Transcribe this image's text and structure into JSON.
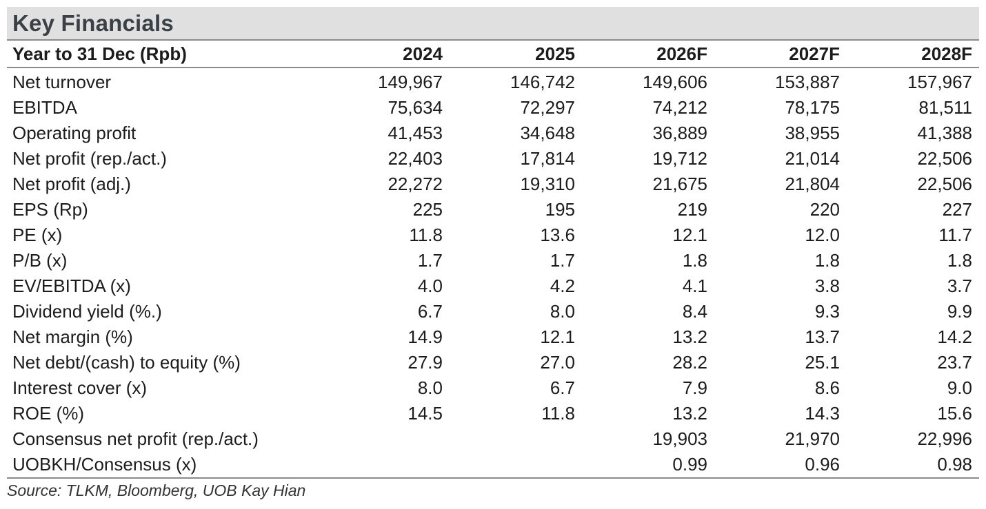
{
  "title": "Key Financials",
  "table": {
    "header_label": "Year to 31 Dec (Rpb)",
    "years": [
      "2024",
      "2025",
      "2026F",
      "2027F",
      "2028F"
    ],
    "rows": [
      {
        "label": "Net turnover",
        "values": [
          "149,967",
          "146,742",
          "149,606",
          "153,887",
          "157,967"
        ]
      },
      {
        "label": "EBITDA",
        "values": [
          "75,634",
          "72,297",
          "74,212",
          "78,175",
          "81,511"
        ]
      },
      {
        "label": "Operating profit",
        "values": [
          "41,453",
          "34,648",
          "36,889",
          "38,955",
          "41,388"
        ]
      },
      {
        "label": "Net profit (rep./act.)",
        "values": [
          "22,403",
          "17,814",
          "19,712",
          "21,014",
          "22,506"
        ]
      },
      {
        "label": "Net profit (adj.)",
        "values": [
          "22,272",
          "19,310",
          "21,675",
          "21,804",
          "22,506"
        ]
      },
      {
        "label": "EPS (Rp)",
        "values": [
          "225",
          "195",
          "219",
          "220",
          "227"
        ]
      },
      {
        "label": "PE (x)",
        "values": [
          "11.8",
          "13.6",
          "12.1",
          "12.0",
          "11.7"
        ]
      },
      {
        "label": "P/B (x)",
        "values": [
          "1.7",
          "1.7",
          "1.8",
          "1.8",
          "1.8"
        ]
      },
      {
        "label": "EV/EBITDA (x)",
        "values": [
          "4.0",
          "4.2",
          "4.1",
          "3.8",
          "3.7"
        ]
      },
      {
        "label": "Dividend yield (%.)",
        "values": [
          "6.7",
          "8.0",
          "8.4",
          "9.3",
          "9.9"
        ]
      },
      {
        "label": "Net margin (%)",
        "values": [
          "14.9",
          "12.1",
          "13.2",
          "13.7",
          "14.2"
        ]
      },
      {
        "label": "Net debt/(cash) to equity (%)",
        "values": [
          "27.9",
          "27.0",
          "28.2",
          "25.1",
          "23.7"
        ]
      },
      {
        "label": "Interest cover (x)",
        "values": [
          "8.0",
          "6.7",
          "7.9",
          "8.6",
          "9.0"
        ]
      },
      {
        "label": "ROE (%)",
        "values": [
          "14.5",
          "11.8",
          "13.2",
          "14.3",
          "15.6"
        ]
      },
      {
        "label": "Consensus net profit (rep./act.)",
        "values": [
          "",
          "",
          "19,903",
          "21,970",
          "22,996"
        ]
      },
      {
        "label": "UOBKH/Consensus (x)",
        "values": [
          "",
          "",
          "0.99",
          "0.96",
          "0.98"
        ]
      }
    ]
  },
  "source": "Source: TLKM, Bloomberg, UOB Kay Hian"
}
